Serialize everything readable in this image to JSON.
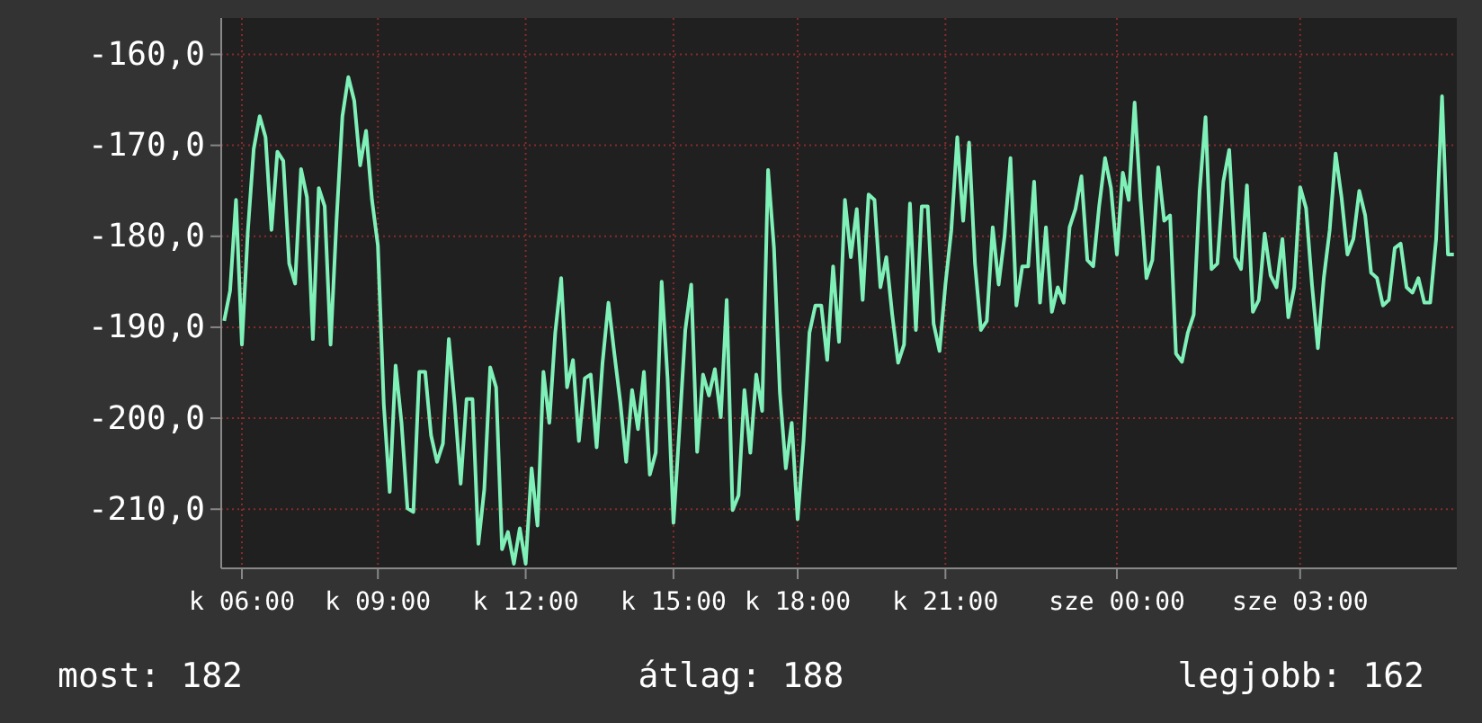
{
  "chart_data": {
    "type": "line",
    "categories": [
      null,
      null,
      null,
      "k 06:00",
      null,
      null,
      null,
      null,
      null,
      null,
      null,
      null,
      null,
      null,
      null,
      null,
      null,
      null,
      null,
      null,
      null,
      null,
      null,
      null,
      null,
      null,
      "k 09:00",
      null,
      null,
      null,
      null,
      null,
      null,
      null,
      null,
      null,
      null,
      null,
      null,
      null,
      null,
      null,
      null,
      null,
      null,
      null,
      null,
      null,
      null,
      null,
      null,
      "k 12:00",
      null,
      null,
      null,
      null,
      null,
      null,
      null,
      null,
      null,
      null,
      null,
      null,
      null,
      null,
      null,
      null,
      null,
      null,
      null,
      null,
      null,
      null,
      null,
      null,
      "k 15:00",
      null,
      null,
      null,
      null,
      null,
      null,
      null,
      null,
      null,
      null,
      null,
      null,
      null,
      null,
      null,
      null,
      null,
      null,
      null,
      null,
      "k 18:00",
      null,
      null,
      null,
      null,
      null,
      null,
      null,
      null,
      null,
      null,
      null,
      null,
      null,
      null,
      null,
      null,
      null,
      null,
      null,
      null,
      null,
      null,
      null,
      null,
      "k 21:00",
      null,
      null,
      null,
      null,
      null,
      null,
      null,
      null,
      null,
      null,
      null,
      null,
      null,
      null,
      null,
      null,
      null,
      null,
      null,
      null,
      null,
      null,
      null,
      null,
      null,
      null,
      null,
      null,
      "sze 00:00",
      null,
      null,
      null,
      null,
      null,
      null,
      null,
      null,
      null,
      null,
      null,
      null,
      null,
      null,
      null,
      null,
      null,
      null,
      null,
      null,
      null,
      null,
      null,
      null,
      null,
      null,
      null,
      null,
      null,
      null,
      "sze 03:00",
      null,
      null,
      null,
      null,
      null,
      null,
      null,
      null,
      null,
      null,
      null,
      null,
      null,
      null,
      null,
      null,
      null,
      null,
      null,
      null,
      null,
      null,
      null,
      null,
      null,
      null
    ],
    "series": [
      {
        "color": "#7ff0b8",
        "values": [
          -189.3,
          -186,
          -176,
          -191.9,
          -179.5,
          -170.4,
          -166.8,
          -169.1,
          -179.3,
          -170.7,
          -171.7,
          -183,
          -185.2,
          -172.6,
          -175.7,
          -191.3,
          -174.7,
          -176.7,
          -191.9,
          -178.3,
          -166.8,
          -162.5,
          -165.1,
          -172.2,
          -168.4,
          -176,
          -181,
          -198.5,
          -208.1,
          -194.2,
          -200.5,
          -209.9,
          -210.3,
          -194.9,
          -194.9,
          -201.9,
          -204.8,
          -202.8,
          -191.3,
          -198.5,
          -207.2,
          -197.9,
          -197.9,
          -213.8,
          -207.8,
          -194.4,
          -196.6,
          -214.4,
          -212.5,
          -216,
          -212.1,
          -216,
          -205.5,
          -211.8,
          -194.9,
          -200.5,
          -190.6,
          -184.6,
          -196.6,
          -193.6,
          -202.5,
          -195.6,
          -195.2,
          -203.2,
          -193.9,
          -187.3,
          -192.9,
          -198.2,
          -204.8,
          -196.9,
          -201.2,
          -194.9,
          -206.2,
          -203.8,
          -185,
          -195.6,
          -211.5,
          -201.2,
          -190.3,
          -185.3,
          -203.7,
          -195.2,
          -197.5,
          -194.6,
          -199.9,
          -187,
          -210.1,
          -208.5,
          -196.9,
          -203.8,
          -195.2,
          -199.2,
          -172.7,
          -181.3,
          -197.2,
          -205.5,
          -200.5,
          -211.1,
          -202.5,
          -190.6,
          -187.6,
          -187.6,
          -193.6,
          -183.3,
          -191.6,
          -176,
          -182.3,
          -177,
          -187,
          -175.4,
          -176,
          -185.6,
          -182.3,
          -188.6,
          -193.9,
          -191.9,
          -176.4,
          -190.3,
          -176.7,
          -176.7,
          -189.6,
          -192.6,
          -185.3,
          -179.3,
          -169.1,
          -178.3,
          -169.7,
          -183,
          -190.3,
          -189.3,
          -179,
          -185.3,
          -180,
          -171.4,
          -187.6,
          -183.3,
          -183.3,
          -174,
          -187.3,
          -179,
          -188.3,
          -185.6,
          -187.3,
          -179,
          -177,
          -173.4,
          -182.6,
          -183.3,
          -176.7,
          -171.4,
          -174.7,
          -182,
          -173,
          -176,
          -165.3,
          -175.9,
          -184.6,
          -182.6,
          -172.4,
          -178.3,
          -177.7,
          -192.9,
          -193.8,
          -190.6,
          -188.6,
          -175,
          -166.9,
          -183.6,
          -183,
          -174,
          -170.5,
          -182.3,
          -183.6,
          -174.4,
          -188.3,
          -187,
          -179.7,
          -184.3,
          -185.6,
          -180.3,
          -188.9,
          -185.6,
          -174.6,
          -176.9,
          -185.3,
          -192.3,
          -184.6,
          -179.3,
          -170.9,
          -175.7,
          -182,
          -180.3,
          -175,
          -177.7,
          -184,
          -184.6,
          -187.6,
          -187,
          -181.3,
          -180.8,
          -185.6,
          -186.2,
          -184.6,
          -187.3,
          -187.3,
          -180.3,
          -164.6,
          -182,
          -182
        ]
      }
    ],
    "ylim": [
      -216.5,
      -156
    ],
    "yticks": [
      {
        "value": -210,
        "label": "-210,0"
      },
      {
        "value": -200,
        "label": "-200,0"
      },
      {
        "value": -190,
        "label": "-190,0"
      },
      {
        "value": -180,
        "label": "-180,0"
      },
      {
        "value": -170,
        "label": "-170,0"
      },
      {
        "value": -160,
        "label": "-160,0"
      }
    ],
    "grid": true,
    "annotations": [
      "most: 182",
      "átlag: 188",
      "legjobb: 162"
    ]
  }
}
